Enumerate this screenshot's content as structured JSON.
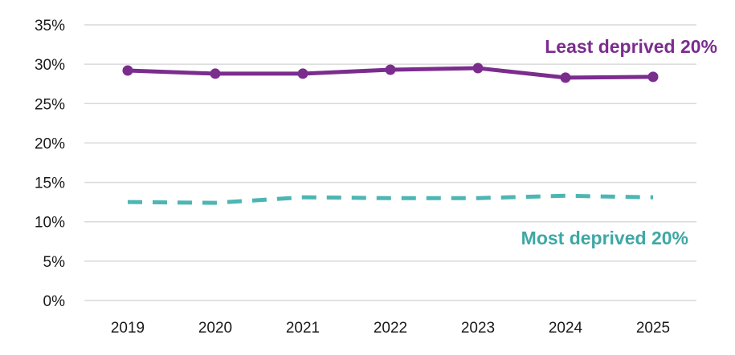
{
  "chart_data": {
    "type": "line",
    "categories": [
      "2019",
      "2020",
      "2021",
      "2022",
      "2023",
      "2024",
      "2025"
    ],
    "ylim": [
      0,
      35
    ],
    "yticks": [
      0,
      5,
      10,
      15,
      20,
      25,
      30,
      35
    ],
    "ytick_labels": [
      "0%",
      "5%",
      "10%",
      "15%",
      "20%",
      "25%",
      "30%",
      "35%"
    ],
    "grid": "horizontal",
    "legend": "inline labels",
    "title": "",
    "xlabel": "",
    "ylabel": "",
    "series": [
      {
        "name": "Least deprived 20%",
        "values": [
          29.2,
          28.8,
          28.8,
          29.3,
          29.5,
          28.3,
          28.4
        ],
        "color": "#7b2d8e",
        "style": "solid",
        "markers": true
      },
      {
        "name": "Most deprived 20%",
        "values": [
          12.5,
          12.4,
          13.1,
          13.0,
          13.0,
          13.3,
          13.1
        ],
        "color": "#4db6b2",
        "style": "dashed",
        "markers": false
      }
    ]
  }
}
